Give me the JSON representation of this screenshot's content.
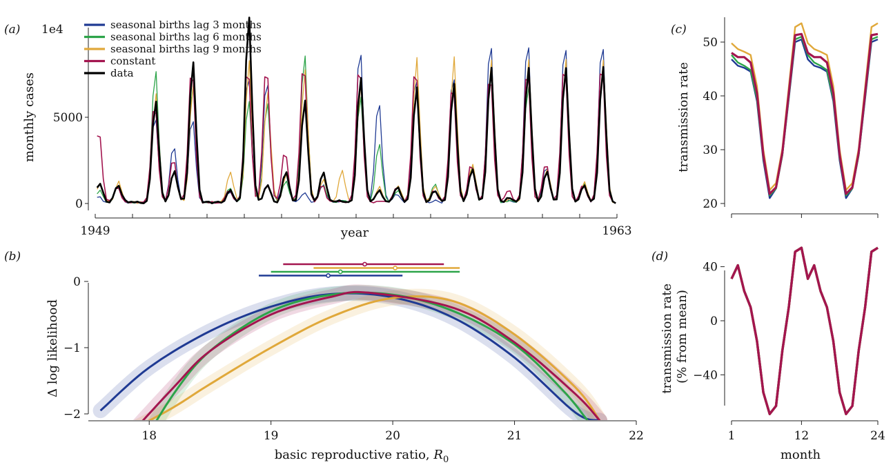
{
  "panel_labels": {
    "a": "(a)",
    "b": "(b)",
    "c": "(c)",
    "d": "(d)"
  },
  "colors": {
    "lag3": "#1f3a93",
    "lag6": "#2ca449",
    "lag9": "#e0a83a",
    "constant": "#a3154f",
    "data": "#000000"
  },
  "chart_data": [
    {
      "id": "a",
      "type": "line",
      "xlabel": "year",
      "ylabel": "monthly cases",
      "xticks": [
        "1949",
        "1963"
      ],
      "yticks": [
        "0",
        "5000"
      ],
      "yexp_label": "1e4",
      "ylim": [
        0,
        11000
      ],
      "legend": {
        "placement": "top-left",
        "entries": [
          "seasonal births lag 3 months",
          "seasonal births lag 6 months",
          "seasonal births lag 9  months",
          "constant",
          "data"
        ]
      },
      "peaks": {
        "x_start": 1949,
        "x_end": 1963,
        "time": [
          1949.1,
          1949.6,
          1950.6,
          1951.1,
          1951.6,
          1952.6,
          1953.1,
          1953.6,
          1954.1,
          1954.6,
          1955.1,
          1955.6,
          1956.1,
          1956.6,
          1957.1,
          1957.6,
          1958.1,
          1958.6,
          1959.1,
          1959.6,
          1960.1,
          1960.6,
          1961.1,
          1961.6,
          1962.1,
          1962.6
        ],
        "series": [
          {
            "name": "seasonal births lag 3 months",
            "values": [
              300,
              1050,
              5200,
              3400,
              5100,
              600,
              7700,
              7300,
              1800,
              550,
              1050,
              100,
              9200,
              6000,
              500,
              7600,
              100,
              7700,
              2000,
              9600,
              100,
              9700,
              2100,
              9500,
              1000,
              9600
            ]
          },
          {
            "name": "seasonal births lag 6 months",
            "values": [
              700,
              1000,
              7900,
              1800,
              7100,
              900,
              6100,
              6000,
              1300,
              8800,
              1050,
              100,
              6300,
              3500,
              700,
              6900,
              1100,
              7100,
              2100,
              7900,
              100,
              6900,
              1800,
              7900,
              1100,
              8000
            ]
          },
          {
            "name": "seasonal births lag 9  months",
            "values": [
              1100,
              1200,
              6400,
              1900,
              6900,
              1800,
              8300,
              6500,
              1700,
              7800,
              1350,
              1900,
              7100,
              900,
              1000,
              8500,
              1000,
              8600,
              2300,
              8400,
              200,
              8400,
              2000,
              8400,
              1200,
              8400
            ]
          },
          {
            "name": "constant",
            "values": [
              4300,
              900,
              5900,
              2600,
              8000,
              700,
              8200,
              8200,
              3000,
              8400,
              1000,
              100,
              8200,
              100,
              900,
              8100,
              700,
              7100,
              2300,
              7700,
              700,
              8000,
              2300,
              8300,
              1000,
              8300
            ]
          },
          {
            "name": "data",
            "values": [
              1100,
              1000,
              6000,
              1900,
              8300,
              700,
              11000,
              1000,
              1800,
              6000,
              1800,
              100,
              7400,
              700,
              900,
              6800,
              700,
              7000,
              2000,
              8000,
              300,
              8000,
              1800,
              8000,
              1000,
              8000
            ]
          }
        ]
      }
    },
    {
      "id": "b",
      "type": "line",
      "xlabel": "basic reproductive ratio, ",
      "xlabel_symbol": "R",
      "xlabel_sub": "0",
      "ylabel": "Δ log likelihood",
      "xlim": [
        17.5,
        22
      ],
      "ylim": [
        -2.1,
        0.2
      ],
      "xticks": [
        "18",
        "19",
        "20",
        "21",
        "22"
      ],
      "yticks": [
        "0",
        "−1",
        "−2"
      ],
      "series": [
        {
          "name": "seasonal births lag 3 months",
          "x": [
            17.6,
            18.0,
            18.5,
            19.0,
            19.5,
            20.0,
            20.5,
            21.0,
            21.5,
            21.7
          ],
          "values": [
            -1.95,
            -1.3,
            -0.75,
            -0.38,
            -0.19,
            -0.24,
            -0.55,
            -1.15,
            -1.98,
            -2.1
          ]
        },
        {
          "name": "seasonal births lag 6 months",
          "x": [
            17.9,
            18.2,
            18.5,
            19.0,
            19.5,
            20.0,
            20.5,
            21.0,
            21.4,
            21.6
          ],
          "values": [
            -2.6,
            -1.7,
            -1.05,
            -0.45,
            -0.2,
            -0.2,
            -0.45,
            -0.95,
            -1.65,
            -2.1
          ]
        },
        {
          "name": "seasonal births lag 9  months",
          "x": [
            17.9,
            18.2,
            18.5,
            19.0,
            19.5,
            20.0,
            20.5,
            21.0,
            21.5,
            21.7
          ],
          "values": [
            -2.2,
            -1.9,
            -1.55,
            -1.0,
            -0.53,
            -0.25,
            -0.3,
            -0.8,
            -1.6,
            -2.1
          ]
        },
        {
          "name": "constant",
          "x": [
            17.8,
            18.2,
            18.5,
            19.0,
            19.5,
            19.8,
            20.5,
            21.0,
            21.5,
            21.7
          ],
          "values": [
            -2.4,
            -1.6,
            -1.05,
            -0.5,
            -0.23,
            -0.17,
            -0.4,
            -0.92,
            -1.7,
            -2.1
          ]
        }
      ],
      "intervals": [
        {
          "name": "constant",
          "low": 19.1,
          "mle": 19.77,
          "high": 20.42
        },
        {
          "name": "seasonal births lag 9  months",
          "low": 19.35,
          "mle": 20.02,
          "high": 20.55
        },
        {
          "name": "seasonal births lag 6 months",
          "low": 19.0,
          "mle": 19.57,
          "high": 20.55
        },
        {
          "name": "seasonal births lag 3 months",
          "low": 18.9,
          "mle": 19.47,
          "high": 20.08
        }
      ]
    },
    {
      "id": "c",
      "type": "line",
      "xlabel": "",
      "ylabel": "transmission rate",
      "xlim": [
        1,
        24
      ],
      "ylim": [
        20,
        55
      ],
      "yticks": [
        "20",
        "30",
        "40",
        "50"
      ],
      "x": [
        1,
        2,
        3,
        4,
        5,
        6,
        7,
        8,
        9,
        10,
        11,
        12,
        13,
        14,
        15,
        16,
        17,
        18,
        19,
        20,
        21,
        22,
        23,
        24
      ],
      "series": [
        {
          "name": "seasonal births lag 3 months",
          "values": [
            46.8,
            45.6,
            45.2,
            44.5,
            39.0,
            28.0,
            21.0,
            22.8,
            29.0,
            39.5,
            50.0,
            50.5,
            46.8,
            45.6,
            45.2,
            44.5,
            39.0,
            28.0,
            21.0,
            22.8,
            29.0,
            39.5,
            50.0,
            50.5
          ]
        },
        {
          "name": "seasonal births lag 6 months",
          "values": [
            47.6,
            46.2,
            45.6,
            44.8,
            39.5,
            28.5,
            21.5,
            22.8,
            29.0,
            39.8,
            50.5,
            51.0,
            47.6,
            46.2,
            45.6,
            44.8,
            39.5,
            28.5,
            21.5,
            22.8,
            29.0,
            39.8,
            50.5,
            51.0
          ]
        },
        {
          "name": "seasonal births lag 9  months",
          "values": [
            49.8,
            48.7,
            48.2,
            47.6,
            41.8,
            30.0,
            22.5,
            23.8,
            30.2,
            41.6,
            52.8,
            53.5,
            49.8,
            48.7,
            48.2,
            47.6,
            41.8,
            30.0,
            22.5,
            23.8,
            30.2,
            41.6,
            52.8,
            53.5
          ]
        },
        {
          "name": "constant",
          "values": [
            48.0,
            47.2,
            47.2,
            46.2,
            40.5,
            29.0,
            21.8,
            23.0,
            29.5,
            40.5,
            51.3,
            51.5,
            48.0,
            47.2,
            47.2,
            46.2,
            40.5,
            29.0,
            21.8,
            23.0,
            29.5,
            40.5,
            51.3,
            51.5
          ]
        }
      ]
    },
    {
      "id": "d",
      "type": "line",
      "xlabel": "month",
      "ylabel": "transmission rate",
      "ylabel2": "(% from mean)",
      "xlim": [
        1,
        24
      ],
      "ylim": [
        -72,
        58
      ],
      "xticks": [
        "1",
        "12",
        "24"
      ],
      "yticks": [
        "40",
        "0",
        "−40"
      ],
      "x": [
        1,
        2,
        3,
        4,
        5,
        6,
        7,
        8,
        9,
        10,
        11,
        12,
        13,
        14,
        15,
        16,
        17,
        18,
        19,
        20,
        21,
        22,
        23,
        24
      ],
      "series": [
        {
          "name": "seasonal births lag 3 months",
          "values": [
            31,
            41,
            22,
            10,
            -15,
            -53,
            -69,
            -63,
            -22,
            10,
            51,
            54,
            31,
            41,
            22,
            10,
            -15,
            -53,
            -69,
            -63,
            -22,
            10,
            51,
            54
          ]
        },
        {
          "name": "seasonal births lag 6 months",
          "values": [
            31,
            41,
            22,
            10,
            -15,
            -53,
            -69,
            -63,
            -22,
            10,
            51,
            54,
            31,
            41,
            22,
            10,
            -15,
            -53,
            -69,
            -63,
            -22,
            10,
            51,
            54
          ]
        },
        {
          "name": "seasonal births lag 9  months",
          "values": [
            31,
            41,
            22,
            10,
            -15,
            -53,
            -69,
            -63,
            -22,
            10,
            51,
            54,
            31,
            41,
            22,
            10,
            -15,
            -53,
            -69,
            -63,
            -22,
            10,
            51,
            54
          ]
        },
        {
          "name": "constant",
          "values": [
            31,
            41,
            22,
            10,
            -15,
            -53,
            -69,
            -63,
            -22,
            10,
            51,
            54,
            31,
            41,
            22,
            10,
            -15,
            -53,
            -69,
            -63,
            -22,
            10,
            51,
            54
          ]
        }
      ]
    }
  ]
}
